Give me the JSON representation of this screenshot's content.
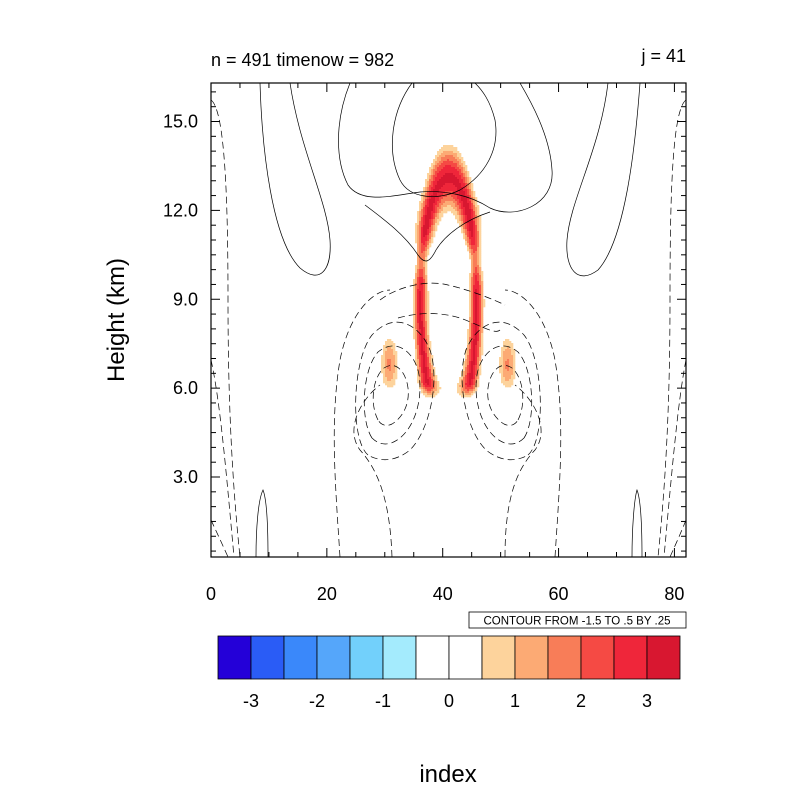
{
  "chart_data": {
    "type": "contour",
    "title_left": "n = 491 timenow = 982",
    "title_right": "j = 41",
    "xlabel": "index",
    "ylabel": "Height (km)",
    "xlim": [
      0,
      82
    ],
    "ylim": [
      0.3,
      16.3
    ],
    "x_ticks": [
      "0",
      "20",
      "40",
      "60",
      "80"
    ],
    "x_tick_values": [
      0,
      20,
      40,
      60,
      80
    ],
    "y_ticks": [
      "3.0",
      "6.0",
      "9.0",
      "12.0",
      "15.0"
    ],
    "y_tick_values": [
      3,
      6,
      9,
      12,
      15
    ],
    "contour_info": "CONTOUR FROM -1.5 TO .5 BY .25",
    "colorbar": {
      "labels": [
        "-3",
        "-2",
        "-1",
        "0",
        "1",
        "2",
        "3"
      ],
      "colors": [
        "#2400d8",
        "#2a5cf6",
        "#3a88fa",
        "#55a6fa",
        "#72d0fb",
        "#a4ebfd",
        "#ffffff",
        "#ffffff",
        "#fdd39c",
        "#fcaa74",
        "#f87d58",
        "#f54a44",
        "#ef263a",
        "#d81730"
      ]
    },
    "shaded_field": {
      "description": "mirror-symmetric warm anomaly about index ~41",
      "center_x": 41,
      "levels": [
        {
          "value": 1,
          "color": "#fdd39c"
        },
        {
          "value": 1.5,
          "color": "#fcaa74"
        },
        {
          "value": 2,
          "color": "#f87d58"
        },
        {
          "value": 2.5,
          "color": "#f54a44"
        },
        {
          "value": 3,
          "color": "#ef263a"
        },
        {
          "value": 3.5,
          "color": "#d81730"
        }
      ]
    }
  }
}
